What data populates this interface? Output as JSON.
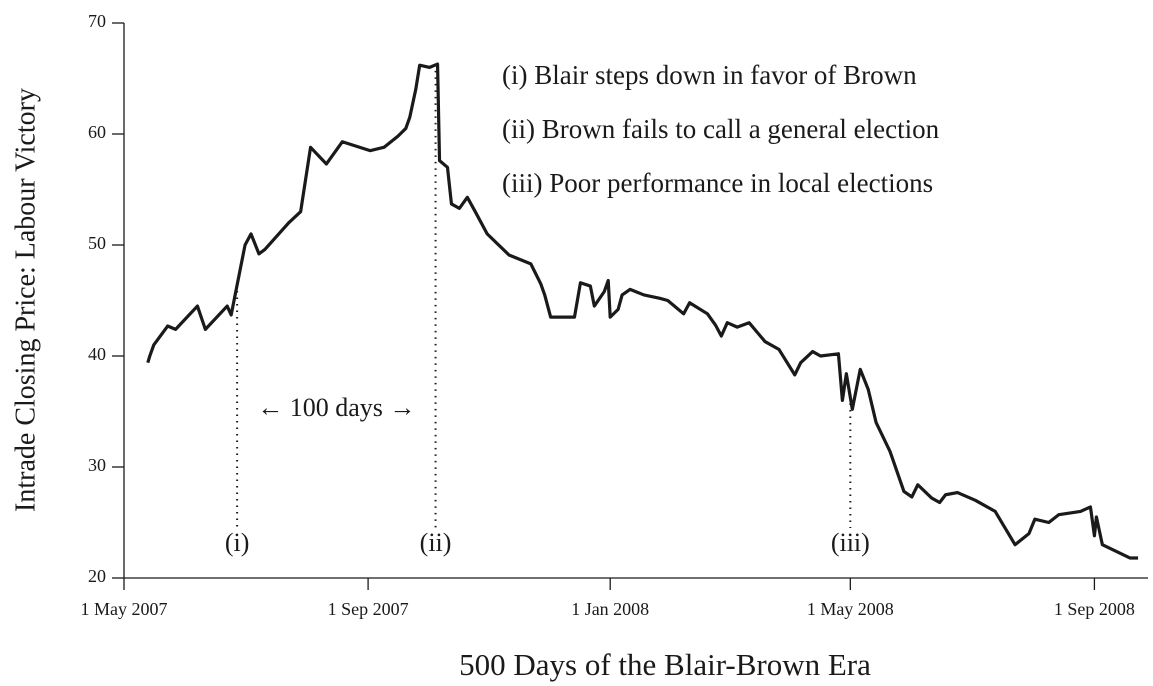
{
  "chart_data": {
    "type": "line",
    "x_label": "500 Days of the Blair-Brown Era",
    "y_label": "Intrade Closing Price: Labour Victory",
    "x": [
      "2007-05-13",
      "2007-05-14",
      "2007-05-16",
      "2007-05-23",
      "2007-05-27",
      "2007-06-07",
      "2007-06-11",
      "2007-06-22",
      "2007-06-24",
      "2007-07-01",
      "2007-07-04",
      "2007-07-08",
      "2007-07-11",
      "2007-07-15",
      "2007-07-23",
      "2007-07-29",
      "2007-08-03",
      "2007-08-11",
      "2007-08-19",
      "2007-09-02",
      "2007-09-09",
      "2007-09-16",
      "2007-09-20",
      "2007-09-22",
      "2007-09-25",
      "2007-09-27",
      "2007-10-02",
      "2007-10-06",
      "2007-10-07",
      "2007-10-11",
      "2007-10-13",
      "2007-10-17",
      "2007-10-21",
      "2007-10-25",
      "2007-10-31",
      "2007-11-11",
      "2007-11-22",
      "2007-11-27",
      "2007-11-29",
      "2007-12-02",
      "2007-12-14",
      "2007-12-17",
      "2007-12-22",
      "2007-12-24",
      "2007-12-29",
      "2007-12-31",
      "2008-01-01",
      "2008-01-05",
      "2008-01-07",
      "2008-01-11",
      "2008-01-18",
      "2008-01-26",
      "2008-01-30",
      "2008-02-07",
      "2008-02-10",
      "2008-02-19",
      "2008-02-23",
      "2008-02-26",
      "2008-02-29",
      "2008-03-05",
      "2008-03-11",
      "2008-03-19",
      "2008-03-26",
      "2008-04-03",
      "2008-04-06",
      "2008-04-12",
      "2008-04-16",
      "2008-04-25",
      "2008-04-27",
      "2008-04-29",
      "2008-05-02",
      "2008-05-06",
      "2008-05-10",
      "2008-05-14",
      "2008-05-21",
      "2008-05-28",
      "2008-06-01",
      "2008-06-04",
      "2008-06-11",
      "2008-06-15",
      "2008-06-18",
      "2008-06-24",
      "2008-07-03",
      "2008-07-13",
      "2008-07-23",
      "2008-07-30",
      "2008-08-02",
      "2008-08-09",
      "2008-08-14",
      "2008-08-25",
      "2008-08-30",
      "2008-09-01",
      "2008-09-02",
      "2008-09-05",
      "2008-09-19",
      "2008-09-23"
    ],
    "series": [
      {
        "color": "#1a1a1a",
        "values": [
          39.4,
          40.0,
          41.0,
          42.7,
          42.4,
          44.5,
          42.4,
          44.5,
          43.7,
          50.0,
          51.0,
          49.2,
          49.6,
          50.4,
          52.0,
          53.0,
          58.8,
          57.3,
          59.3,
          58.5,
          58.8,
          59.8,
          60.5,
          61.5,
          64.0,
          66.2,
          66.0,
          66.3,
          57.6,
          57.0,
          53.7,
          53.3,
          54.3,
          53.0,
          51.0,
          49.1,
          48.3,
          46.5,
          45.5,
          43.5,
          43.5,
          46.6,
          46.3,
          44.5,
          45.8,
          46.8,
          43.5,
          44.2,
          45.5,
          46.0,
          45.5,
          45.2,
          45.0,
          43.8,
          44.8,
          43.8,
          42.8,
          41.8,
          43.0,
          42.6,
          43.0,
          41.3,
          40.6,
          38.3,
          39.4,
          40.4,
          40.0,
          40.2,
          36.0,
          38.4,
          35.2,
          38.8,
          37.0,
          34.0,
          31.4,
          27.8,
          27.3,
          28.4,
          27.2,
          26.8,
          27.5,
          27.7,
          27.0,
          26.0,
          23.0,
          24.0,
          25.3,
          25.0,
          25.7,
          26.0,
          26.4,
          23.8,
          25.5,
          23.0,
          21.8,
          21.8
        ]
      }
    ],
    "xlim": [
      "2007-05-01",
      "2008-09-28"
    ],
    "xticks": [
      {
        "value": "2007-05-01",
        "label": "1 May 2007"
      },
      {
        "value": "2007-09-01",
        "label": "1 Sep 2007"
      },
      {
        "value": "2008-01-01",
        "label": "1 Jan 2008"
      },
      {
        "value": "2008-05-01",
        "label": "1 May 2008"
      },
      {
        "value": "2008-09-01",
        "label": "1 Sep 2008"
      }
    ],
    "ylim": [
      20,
      70
    ],
    "yticks": [
      20,
      30,
      40,
      50,
      60,
      70
    ],
    "events": [
      {
        "x": "2007-06-27",
        "label": "(i)"
      },
      {
        "x": "2007-10-05",
        "label": "(ii)"
      },
      {
        "x": "2008-05-01",
        "label": "(iii)"
      }
    ],
    "span_label": "← 100 days →",
    "notes": [
      "(i) Blair steps down in favor of Brown",
      "(ii) Brown fails to call a general election",
      "(iii) Poor performance in local elections"
    ]
  }
}
